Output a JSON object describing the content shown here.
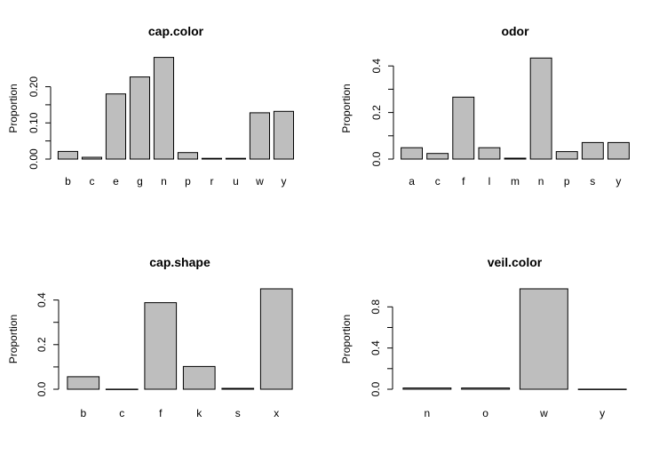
{
  "bar_fill": "#bebebe",
  "chart_data": [
    {
      "type": "bar",
      "title": "cap.color",
      "ylabel": "Proportion",
      "xlabel": "",
      "ylim": [
        0,
        0.28
      ],
      "yticks": [
        0.0,
        0.1,
        0.2
      ],
      "ytick_labels": [
        "0.00",
        "0.10",
        "0.20"
      ],
      "categories": [
        "b",
        "c",
        "e",
        "g",
        "n",
        "p",
        "r",
        "u",
        "w",
        "y"
      ],
      "values": [
        0.021,
        0.005,
        0.18,
        0.227,
        0.281,
        0.018,
        0.002,
        0.002,
        0.128,
        0.132
      ]
    },
    {
      "type": "bar",
      "title": "odor",
      "ylabel": "Proportion",
      "xlabel": "",
      "ylim": [
        0,
        0.435
      ],
      "yticks": [
        0.0,
        0.2,
        0.4
      ],
      "ytick_labels": [
        "0.0",
        "0.2",
        "0.4"
      ],
      "categories": [
        "a",
        "c",
        "f",
        "l",
        "m",
        "n",
        "p",
        "s",
        "y"
      ],
      "values": [
        0.049,
        0.024,
        0.266,
        0.049,
        0.004,
        0.434,
        0.032,
        0.071,
        0.071
      ]
    },
    {
      "type": "bar",
      "title": "cap.shape",
      "ylabel": "Proportion",
      "xlabel": "",
      "ylim": [
        0,
        0.45
      ],
      "yticks": [
        0.0,
        0.2,
        0.4
      ],
      "ytick_labels": [
        "0.0",
        "0.2",
        "0.4"
      ],
      "categories": [
        "b",
        "c",
        "f",
        "k",
        "s",
        "x"
      ],
      "values": [
        0.056,
        0.0005,
        0.388,
        0.102,
        0.004,
        0.45
      ]
    },
    {
      "type": "bar",
      "title": "veil.color",
      "ylabel": "Proportion",
      "xlabel": "",
      "ylim": [
        0,
        0.975
      ],
      "yticks": [
        0.0,
        0.4,
        0.8
      ],
      "ytick_labels": [
        "0.0",
        "0.4",
        "0.8"
      ],
      "categories": [
        "n",
        "o",
        "w",
        "y"
      ],
      "values": [
        0.012,
        0.012,
        0.975,
        0.001
      ]
    }
  ]
}
